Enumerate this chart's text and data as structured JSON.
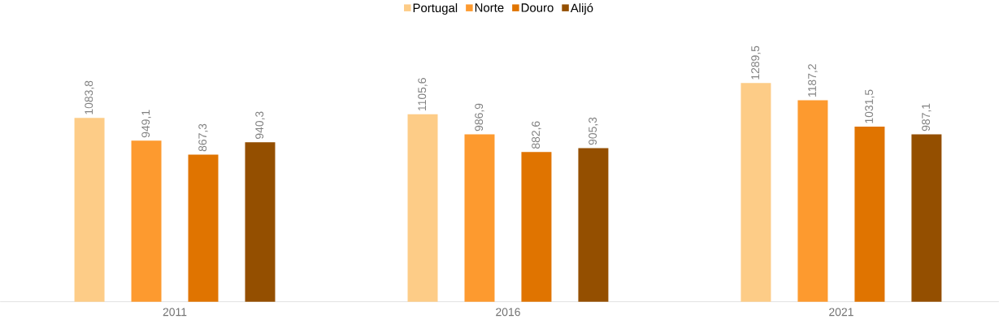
{
  "chart_data": {
    "type": "bar",
    "categories": [
      "2011",
      "2016",
      "2021"
    ],
    "series": [
      {
        "name": "Portugal",
        "color": "#fdcc87",
        "values": [
          1083.8,
          1105.6,
          1289.5
        ],
        "value_labels": [
          "1083,8",
          "1105,6",
          "1289,5"
        ]
      },
      {
        "name": "Norte",
        "color": "#fd9a2f",
        "values": [
          949.1,
          986.9,
          1187.2
        ],
        "value_labels": [
          "949,1",
          "986,9",
          "1187,2"
        ]
      },
      {
        "name": "Douro",
        "color": "#e07400",
        "values": [
          867.3,
          882.6,
          1031.5
        ],
        "value_labels": [
          "867,3",
          "882,6",
          "1031,5"
        ]
      },
      {
        "name": "Alijó",
        "color": "#944f00",
        "values": [
          940.3,
          905.3,
          987.1
        ],
        "value_labels": [
          "940,3",
          "905,3",
          "987,1"
        ]
      }
    ],
    "tick_labels": "x",
    "legend": "top"
  }
}
